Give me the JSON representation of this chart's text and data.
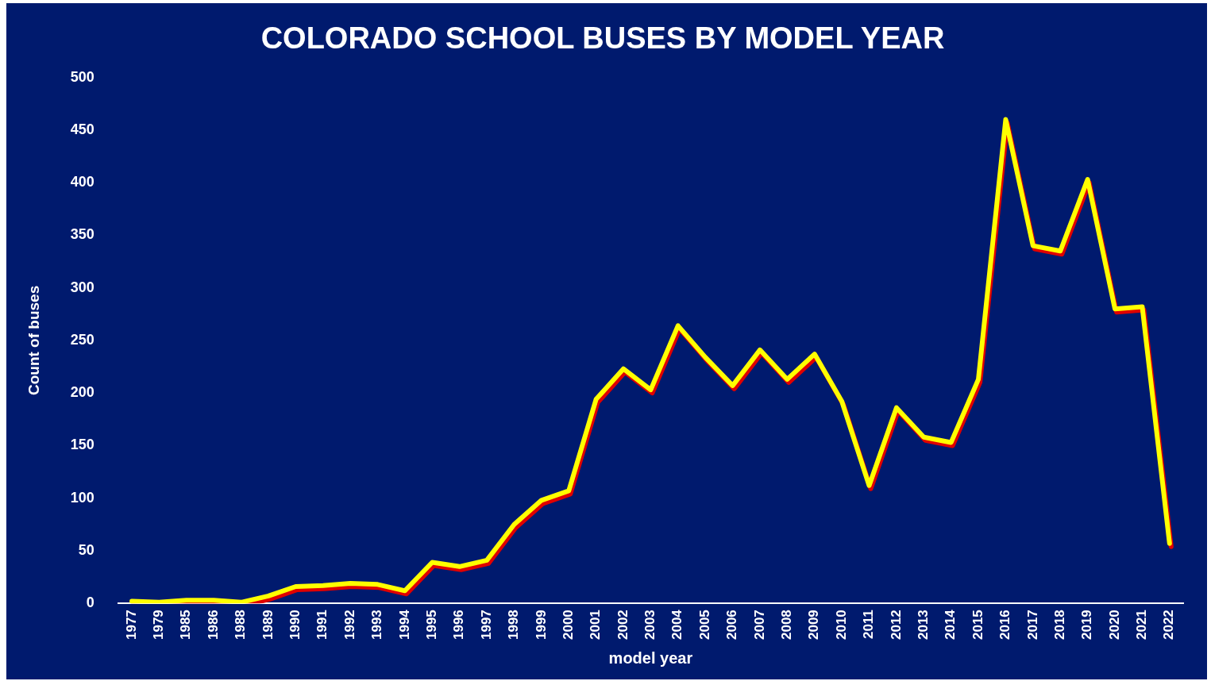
{
  "chart_data": {
    "type": "line",
    "title": "COLORADO SCHOOL BUSES BY MODEL YEAR",
    "xlabel": "model year",
    "ylabel": "Count of buses",
    "categories": [
      "1977",
      "1979",
      "1985",
      "1986",
      "1988",
      "1989",
      "1990",
      "1991",
      "1992",
      "1993",
      "1994",
      "1995",
      "1996",
      "1997",
      "1998",
      "1999",
      "2000",
      "2001",
      "2002",
      "2003",
      "2004",
      "2005",
      "2006",
      "2007",
      "2008",
      "2009",
      "2010",
      "2011",
      "2012",
      "2013",
      "2014",
      "2015",
      "2016",
      "2017",
      "2018",
      "2019",
      "2020",
      "2021",
      "2022"
    ],
    "series": [
      {
        "color": "#ffff00",
        "values": [
          2,
          1,
          3,
          3,
          1,
          7,
          16,
          17,
          19,
          18,
          12,
          39,
          35,
          41,
          75,
          98,
          107,
          194,
          223,
          203,
          264,
          234,
          207,
          241,
          213,
          237,
          192,
          112,
          186,
          158,
          153,
          213,
          460,
          340,
          335,
          403,
          280,
          282,
          57
        ]
      }
    ],
    "ylim": [
      0,
      500
    ],
    "yticks": [
      0,
      50,
      100,
      150,
      200,
      250,
      300,
      350,
      400,
      450,
      500
    ],
    "grid": false,
    "marker": "none",
    "line_style": "solid",
    "legend": false
  }
}
